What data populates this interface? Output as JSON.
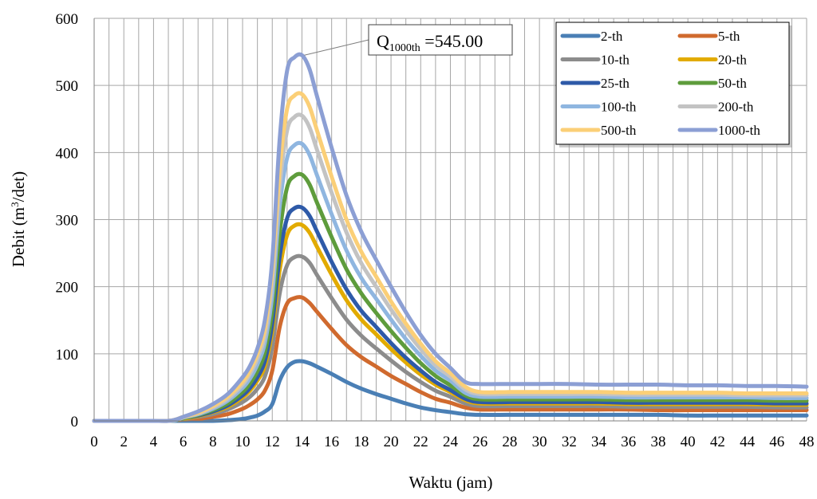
{
  "chart_data": {
    "type": "line",
    "title": "",
    "xlabel": "Waktu (jam)",
    "ylabel_main": "Debit  (m",
    "ylabel_sup": "3",
    "ylabel_tail": "/det)",
    "xlim": [
      0,
      48
    ],
    "ylim": [
      0,
      600
    ],
    "x_ticks": [
      0,
      2,
      4,
      6,
      8,
      10,
      12,
      14,
      16,
      18,
      20,
      22,
      24,
      26,
      28,
      30,
      32,
      34,
      36,
      38,
      40,
      42,
      44,
      46,
      48
    ],
    "y_ticks": [
      0,
      100,
      200,
      300,
      400,
      500,
      600
    ],
    "grid": true,
    "legend_position": "top-right",
    "annotation": {
      "prefix": "Q",
      "subscript": "1000th",
      "suffix": " =545.00",
      "x": 14,
      "y": 545
    },
    "x": [
      0,
      1,
      2,
      3,
      4,
      5,
      5.5,
      6,
      7,
      8,
      9,
      10,
      10.5,
      11,
      11.5,
      12,
      12.5,
      13,
      13.5,
      14,
      14.5,
      15,
      16,
      17,
      18,
      19,
      20,
      21,
      22,
      23,
      24,
      25,
      26,
      28,
      30,
      32,
      34,
      36,
      38,
      40,
      42,
      44,
      46,
      48
    ],
    "series": [
      {
        "name": "2-th",
        "color": "#4a7fb5",
        "values": [
          0,
          0,
          0,
          0,
          0,
          0,
          0,
          0,
          0,
          0,
          1,
          3,
          5,
          8,
          14,
          25,
          60,
          80,
          88,
          89,
          86,
          81,
          70,
          58,
          48,
          40,
          33,
          26,
          20,
          16,
          13,
          10,
          9,
          9,
          9,
          9,
          9,
          9,
          9,
          8,
          8,
          8,
          8,
          8
        ]
      },
      {
        "name": "5-th",
        "color": "#d06a2e",
        "values": [
          0,
          0,
          0,
          0,
          0,
          0,
          1,
          2,
          3,
          6,
          10,
          18,
          24,
          32,
          45,
          75,
          140,
          175,
          183,
          184,
          176,
          163,
          137,
          113,
          95,
          81,
          67,
          55,
          43,
          33,
          27,
          20,
          17,
          17,
          17,
          17,
          17,
          17,
          16,
          16,
          16,
          16,
          16,
          16
        ]
      },
      {
        "name": "10-th",
        "color": "#8c8c8c",
        "values": [
          0,
          0,
          0,
          0,
          0,
          0,
          1,
          3,
          6,
          10,
          17,
          28,
          36,
          48,
          66,
          110,
          190,
          232,
          244,
          245,
          236,
          218,
          183,
          151,
          127,
          108,
          90,
          73,
          58,
          45,
          36,
          26,
          22,
          22,
          22,
          22,
          22,
          21,
          21,
          21,
          21,
          21,
          20,
          20
        ]
      },
      {
        "name": "20-th",
        "color": "#e2ab00",
        "values": [
          0,
          0,
          0,
          0,
          0,
          0,
          1,
          3,
          7,
          13,
          21,
          35,
          45,
          60,
          82,
          135,
          225,
          277,
          291,
          292,
          281,
          260,
          218,
          180,
          151,
          129,
          107,
          87,
          69,
          54,
          43,
          31,
          26,
          26,
          26,
          26,
          26,
          25,
          25,
          25,
          25,
          25,
          24,
          24
        ]
      },
      {
        "name": "25-th",
        "color": "#2e5aa8",
        "values": [
          0,
          0,
          0,
          0,
          0,
          0,
          1,
          4,
          8,
          14,
          23,
          38,
          49,
          65,
          89,
          145,
          245,
          302,
          317,
          318,
          306,
          283,
          237,
          196,
          164,
          140,
          116,
          94,
          75,
          58,
          46,
          33,
          28,
          28,
          28,
          28,
          28,
          27,
          27,
          27,
          27,
          27,
          26,
          26
        ]
      },
      {
        "name": "50-th",
        "color": "#5e9c3c",
        "values": [
          0,
          0,
          0,
          0,
          0,
          0,
          1,
          4,
          9,
          16,
          26,
          43,
          56,
          74,
          102,
          165,
          280,
          348,
          365,
          367,
          353,
          326,
          274,
          226,
          190,
          161,
          134,
          109,
          86,
          67,
          53,
          38,
          32,
          32,
          32,
          32,
          32,
          31,
          31,
          31,
          31,
          31,
          30,
          30
        ]
      },
      {
        "name": "100-th",
        "color": "#8fb6e0",
        "values": [
          0,
          0,
          0,
          0,
          0,
          0,
          1,
          5,
          10,
          18,
          30,
          49,
          63,
          84,
          116,
          188,
          320,
          392,
          411,
          413,
          397,
          367,
          308,
          254,
          213,
          182,
          151,
          122,
          97,
          75,
          60,
          42,
          36,
          36,
          36,
          36,
          36,
          35,
          35,
          35,
          35,
          35,
          34,
          34
        ]
      },
      {
        "name": "200-th",
        "color": "#c3c3c3",
        "values": [
          0,
          0,
          0,
          0,
          0,
          0,
          2,
          5,
          11,
          20,
          33,
          54,
          70,
          93,
          128,
          208,
          350,
          433,
          453,
          455,
          438,
          405,
          340,
          281,
          235,
          200,
          166,
          135,
          107,
          83,
          66,
          47,
          40,
          40,
          40,
          40,
          40,
          39,
          39,
          39,
          39,
          38,
          38,
          38
        ]
      },
      {
        "name": "500-th",
        "color": "#fbcf77",
        "values": [
          0,
          0,
          0,
          0,
          0,
          0,
          2,
          6,
          12,
          22,
          36,
          58,
          75,
          100,
          138,
          225,
          375,
          465,
          485,
          487,
          469,
          434,
          364,
          300,
          252,
          215,
          178,
          145,
          115,
          89,
          71,
          51,
          43,
          43,
          43,
          43,
          43,
          42,
          42,
          42,
          42,
          41,
          41,
          41
        ]
      },
      {
        "name": "1000-th",
        "color": "#8c9fd4",
        "values": [
          0,
          0,
          0,
          0,
          0,
          0,
          2,
          6,
          14,
          25,
          40,
          65,
          82,
          108,
          150,
          240,
          420,
          522,
          542,
          545,
          525,
          485,
          407,
          336,
          282,
          240,
          200,
          162,
          128,
          100,
          79,
          58,
          55,
          55,
          55,
          55,
          54,
          54,
          54,
          53,
          53,
          52,
          52,
          51
        ]
      }
    ]
  }
}
